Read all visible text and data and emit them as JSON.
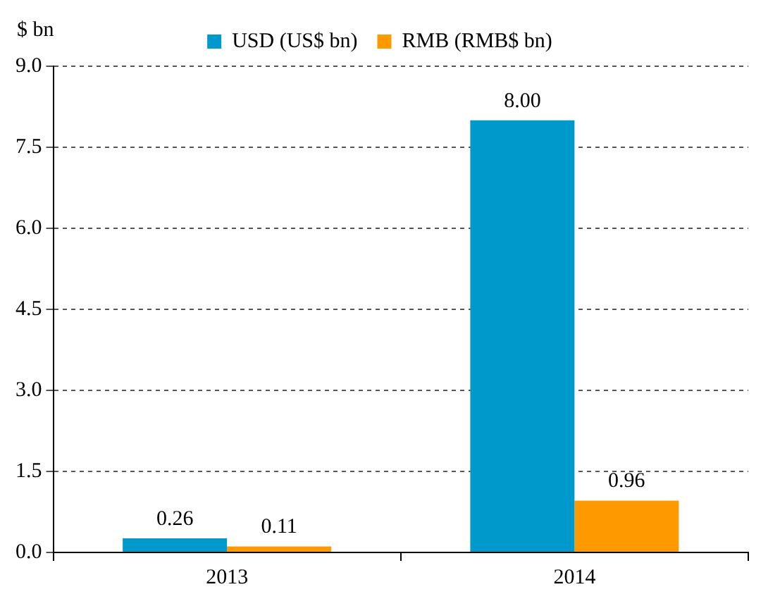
{
  "chart_data": {
    "type": "bar",
    "ylabel": "$ bn",
    "categories": [
      "2013",
      "2014"
    ],
    "series": [
      {
        "name": "USD (US$ bn)",
        "color": "#0099cc",
        "values": [
          0.26,
          8.0
        ],
        "value_labels": [
          "0.26",
          "8.00"
        ]
      },
      {
        "name": "RMB (RMB$ bn)",
        "color": "#ff9900",
        "values": [
          0.11,
          0.96
        ],
        "value_labels": [
          "0.11",
          "0.96"
        ]
      }
    ],
    "ylim": [
      0,
      9
    ],
    "yticks": [
      {
        "value": 0,
        "label": "0.0"
      },
      {
        "value": 1.5,
        "label": "1.5"
      },
      {
        "value": 3,
        "label": "3.0"
      },
      {
        "value": 4.5,
        "label": "4.5"
      },
      {
        "value": 6,
        "label": "6.0"
      },
      {
        "value": 7.5,
        "label": "7.5"
      },
      {
        "value": 9,
        "label": "9.0"
      }
    ],
    "grid": "y",
    "legend": "top"
  }
}
